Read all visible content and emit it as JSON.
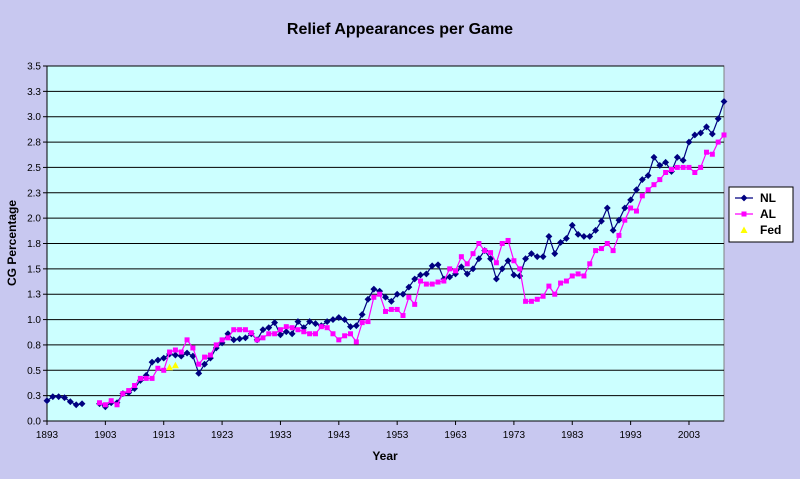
{
  "chart_data": {
    "type": "line",
    "title": "Relief Appearances per Game",
    "xlabel": "Year",
    "ylabel": "CG Percentage",
    "xlim": [
      1893,
      2007
    ],
    "ylim": [
      0.0,
      3.5
    ],
    "x_ticks": [
      "1893",
      "1903",
      "1913",
      "1923",
      "1933",
      "1943",
      "1953",
      "1963",
      "1973",
      "1983",
      "1993",
      "2003"
    ],
    "y_ticks": [
      "0.0",
      "0.3",
      "0.5",
      "0.8",
      "1.0",
      "1.3",
      "1.5",
      "1.8",
      "2.0",
      "2.3",
      "2.5",
      "2.8",
      "3.0",
      "3.3",
      "3.5"
    ],
    "grid": "horizontal",
    "legend_position": "right",
    "series": [
      {
        "name": "NL",
        "color": "#000080",
        "marker": "diamond",
        "points": [
          [
            1893,
            0.2
          ],
          [
            1894,
            0.24
          ],
          [
            1895,
            0.24
          ],
          [
            1896,
            0.23
          ],
          [
            1897,
            0.19
          ],
          [
            1898,
            0.16
          ],
          [
            1899,
            0.17
          ],
          [
            1902,
            0.17
          ],
          [
            1903,
            0.14
          ],
          [
            1904,
            0.18
          ],
          [
            1905,
            0.18
          ],
          [
            1906,
            0.27
          ],
          [
            1907,
            0.28
          ],
          [
            1908,
            0.32
          ],
          [
            1909,
            0.4
          ],
          [
            1910,
            0.45
          ],
          [
            1911,
            0.58
          ],
          [
            1912,
            0.6
          ],
          [
            1913,
            0.62
          ],
          [
            1914,
            0.66
          ],
          [
            1915,
            0.65
          ],
          [
            1916,
            0.64
          ],
          [
            1917,
            0.67
          ],
          [
            1918,
            0.64
          ],
          [
            1919,
            0.47
          ],
          [
            1920,
            0.56
          ],
          [
            1921,
            0.62
          ],
          [
            1922,
            0.72
          ],
          [
            1923,
            0.77
          ],
          [
            1924,
            0.86
          ],
          [
            1925,
            0.8
          ],
          [
            1926,
            0.81
          ],
          [
            1927,
            0.82
          ],
          [
            1928,
            0.86
          ],
          [
            1929,
            0.8
          ],
          [
            1930,
            0.9
          ],
          [
            1931,
            0.92
          ],
          [
            1932,
            0.97
          ],
          [
            1933,
            0.85
          ],
          [
            1934,
            0.88
          ],
          [
            1935,
            0.86
          ],
          [
            1936,
            0.98
          ],
          [
            1937,
            0.92
          ],
          [
            1938,
            0.98
          ],
          [
            1939,
            0.96
          ],
          [
            1940,
            0.94
          ],
          [
            1941,
            0.98
          ],
          [
            1942,
            1.0
          ],
          [
            1943,
            1.02
          ],
          [
            1944,
            1.0
          ],
          [
            1945,
            0.93
          ],
          [
            1946,
            0.94
          ],
          [
            1947,
            1.05
          ],
          [
            1948,
            1.2
          ],
          [
            1949,
            1.3
          ],
          [
            1950,
            1.28
          ],
          [
            1951,
            1.22
          ],
          [
            1952,
            1.18
          ],
          [
            1953,
            1.25
          ],
          [
            1954,
            1.25
          ],
          [
            1955,
            1.32
          ],
          [
            1956,
            1.4
          ],
          [
            1957,
            1.44
          ],
          [
            1958,
            1.45
          ],
          [
            1959,
            1.53
          ],
          [
            1960,
            1.54
          ],
          [
            1961,
            1.4
          ],
          [
            1962,
            1.42
          ],
          [
            1963,
            1.45
          ],
          [
            1964,
            1.52
          ],
          [
            1965,
            1.45
          ],
          [
            1966,
            1.5
          ],
          [
            1967,
            1.6
          ],
          [
            1968,
            1.68
          ],
          [
            1969,
            1.6
          ],
          [
            1970,
            1.4
          ],
          [
            1971,
            1.5
          ],
          [
            1972,
            1.58
          ],
          [
            1973,
            1.44
          ],
          [
            1974,
            1.43
          ],
          [
            1975,
            1.6
          ],
          [
            1976,
            1.65
          ],
          [
            1977,
            1.62
          ],
          [
            1978,
            1.62
          ],
          [
            1979,
            1.82
          ],
          [
            1980,
            1.65
          ],
          [
            1981,
            1.76
          ],
          [
            1982,
            1.8
          ],
          [
            1983,
            1.93
          ],
          [
            1984,
            1.84
          ],
          [
            1985,
            1.82
          ],
          [
            1986,
            1.82
          ],
          [
            1987,
            1.88
          ],
          [
            1988,
            1.97
          ],
          [
            1989,
            2.1
          ],
          [
            1990,
            1.88
          ],
          [
            1991,
            1.98
          ],
          [
            1992,
            2.1
          ],
          [
            1993,
            2.18
          ],
          [
            1994,
            2.28
          ],
          [
            1995,
            2.38
          ],
          [
            1996,
            2.42
          ],
          [
            1997,
            2.6
          ],
          [
            1998,
            2.52
          ],
          [
            1999,
            2.55
          ],
          [
            2000,
            2.46
          ],
          [
            2001,
            2.6
          ],
          [
            2002,
            2.57
          ],
          [
            2003,
            2.75
          ],
          [
            2004,
            2.82
          ],
          [
            2005,
            2.84
          ],
          [
            2006,
            2.9
          ],
          [
            2007,
            2.83
          ],
          [
            2008,
            2.98
          ],
          [
            2009,
            3.15
          ]
        ]
      },
      {
        "name": "AL",
        "color": "#ff00ff",
        "marker": "square",
        "points": [
          [
            1902,
            0.18
          ],
          [
            1903,
            0.16
          ],
          [
            1904,
            0.2
          ],
          [
            1905,
            0.16
          ],
          [
            1906,
            0.27
          ],
          [
            1907,
            0.3
          ],
          [
            1908,
            0.35
          ],
          [
            1909,
            0.42
          ],
          [
            1910,
            0.42
          ],
          [
            1911,
            0.42
          ],
          [
            1912,
            0.52
          ],
          [
            1913,
            0.5
          ],
          [
            1914,
            0.68
          ],
          [
            1915,
            0.7
          ],
          [
            1916,
            0.68
          ],
          [
            1917,
            0.8
          ],
          [
            1918,
            0.72
          ],
          [
            1919,
            0.56
          ],
          [
            1920,
            0.63
          ],
          [
            1921,
            0.65
          ],
          [
            1922,
            0.75
          ],
          [
            1923,
            0.8
          ],
          [
            1924,
            0.82
          ],
          [
            1925,
            0.9
          ],
          [
            1926,
            0.9
          ],
          [
            1927,
            0.9
          ],
          [
            1928,
            0.87
          ],
          [
            1929,
            0.8
          ],
          [
            1930,
            0.82
          ],
          [
            1931,
            0.86
          ],
          [
            1932,
            0.86
          ],
          [
            1933,
            0.9
          ],
          [
            1934,
            0.93
          ],
          [
            1935,
            0.92
          ],
          [
            1936,
            0.9
          ],
          [
            1937,
            0.88
          ],
          [
            1938,
            0.86
          ],
          [
            1939,
            0.86
          ],
          [
            1940,
            0.93
          ],
          [
            1941,
            0.92
          ],
          [
            1942,
            0.86
          ],
          [
            1943,
            0.8
          ],
          [
            1944,
            0.84
          ],
          [
            1945,
            0.86
          ],
          [
            1946,
            0.78
          ],
          [
            1947,
            0.97
          ],
          [
            1948,
            0.98
          ],
          [
            1949,
            1.22
          ],
          [
            1950,
            1.25
          ],
          [
            1951,
            1.08
          ],
          [
            1952,
            1.1
          ],
          [
            1953,
            1.1
          ],
          [
            1954,
            1.04
          ],
          [
            1955,
            1.22
          ],
          [
            1956,
            1.15
          ],
          [
            1957,
            1.38
          ],
          [
            1958,
            1.35
          ],
          [
            1959,
            1.35
          ],
          [
            1960,
            1.37
          ],
          [
            1961,
            1.38
          ],
          [
            1962,
            1.5
          ],
          [
            1963,
            1.48
          ],
          [
            1964,
            1.62
          ],
          [
            1965,
            1.55
          ],
          [
            1966,
            1.65
          ],
          [
            1967,
            1.75
          ],
          [
            1968,
            1.68
          ],
          [
            1969,
            1.66
          ],
          [
            1970,
            1.56
          ],
          [
            1971,
            1.75
          ],
          [
            1972,
            1.78
          ],
          [
            1973,
            1.58
          ],
          [
            1974,
            1.5
          ],
          [
            1975,
            1.18
          ],
          [
            1976,
            1.18
          ],
          [
            1977,
            1.2
          ],
          [
            1978,
            1.23
          ],
          [
            1979,
            1.33
          ],
          [
            1980,
            1.25
          ],
          [
            1981,
            1.36
          ],
          [
            1982,
            1.38
          ],
          [
            1983,
            1.43
          ],
          [
            1984,
            1.45
          ],
          [
            1985,
            1.43
          ],
          [
            1986,
            1.55
          ],
          [
            1987,
            1.68
          ],
          [
            1988,
            1.7
          ],
          [
            1989,
            1.75
          ],
          [
            1990,
            1.68
          ],
          [
            1991,
            1.83
          ],
          [
            1992,
            1.98
          ],
          [
            1993,
            2.1
          ],
          [
            1994,
            2.07
          ],
          [
            1995,
            2.22
          ],
          [
            1996,
            2.28
          ],
          [
            1997,
            2.33
          ],
          [
            1998,
            2.38
          ],
          [
            1999,
            2.45
          ],
          [
            2000,
            2.48
          ],
          [
            2001,
            2.5
          ],
          [
            2002,
            2.5
          ],
          [
            2003,
            2.5
          ],
          [
            2004,
            2.45
          ],
          [
            2005,
            2.5
          ],
          [
            2006,
            2.65
          ],
          [
            2007,
            2.63
          ],
          [
            2008,
            2.75
          ],
          [
            2009,
            2.82
          ]
        ]
      },
      {
        "name": "Fed",
        "color": "#ffff00",
        "marker": "triangle",
        "points": [
          [
            1914,
            0.53
          ],
          [
            1915,
            0.55
          ]
        ]
      }
    ]
  }
}
